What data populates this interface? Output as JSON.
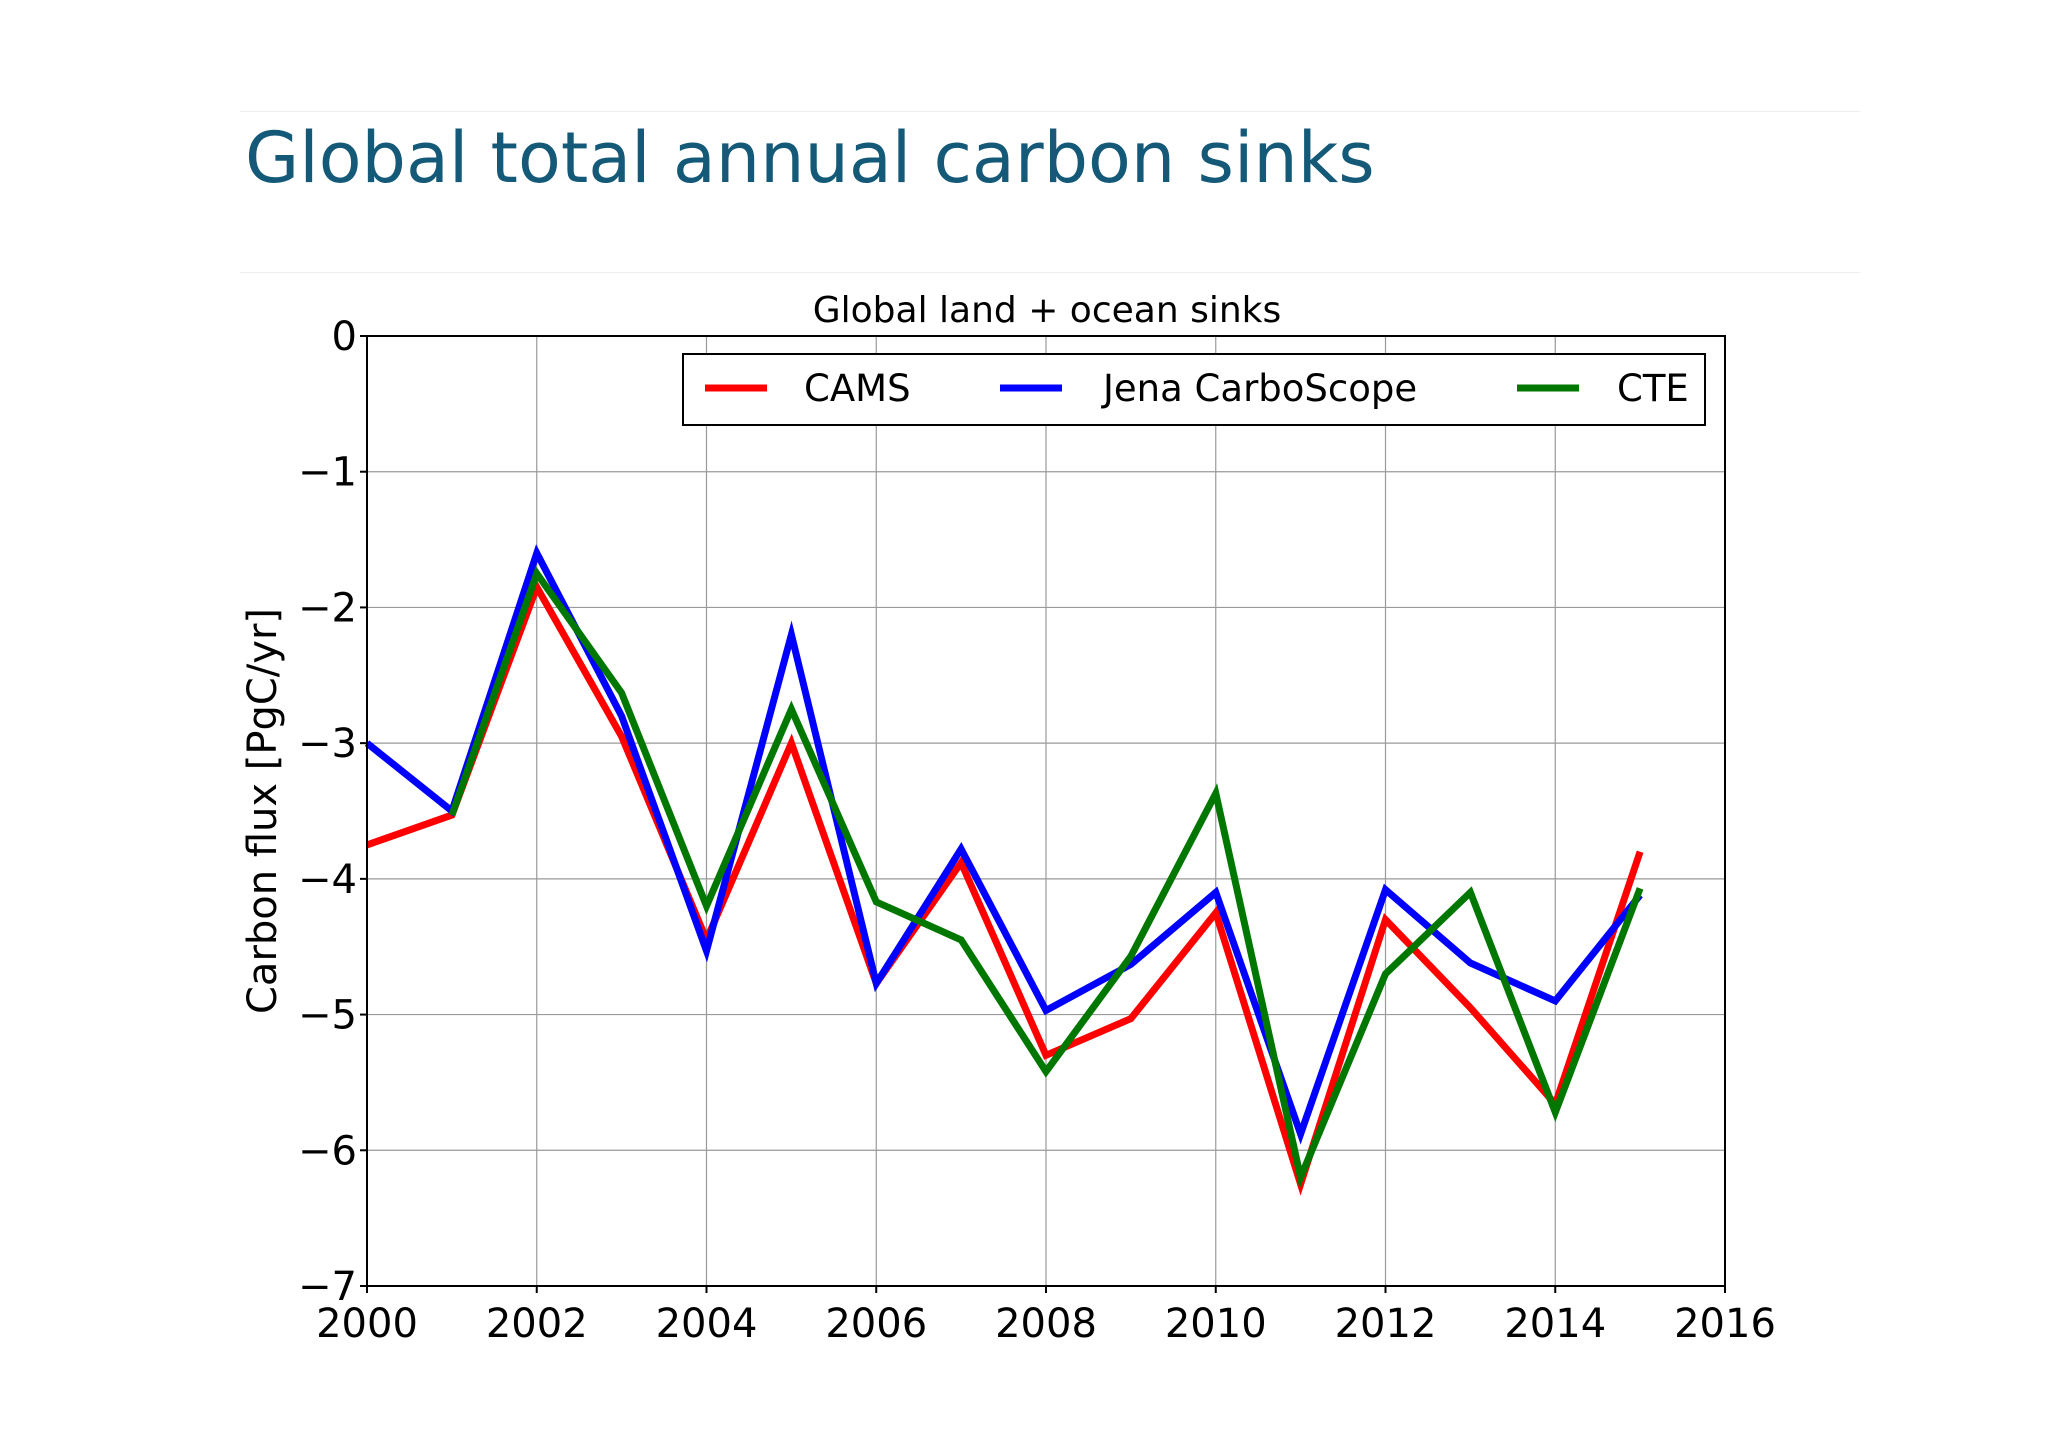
{
  "slide": {
    "title": "Global total annual carbon sinks"
  },
  "chart_data": {
    "type": "line",
    "title": "Global land + ocean sinks",
    "xlabel": "",
    "ylabel": "Carbon flux [PgC/yr]",
    "xlim": [
      2000,
      2016
    ],
    "ylim": [
      -7,
      0
    ],
    "xticks": [
      2000,
      2002,
      2004,
      2006,
      2008,
      2010,
      2012,
      2014,
      2016
    ],
    "yticks": [
      0,
      -1,
      -2,
      -3,
      -4,
      -5,
      -6,
      -7
    ],
    "ytick_labels": [
      "0",
      "−1",
      "−2",
      "−3",
      "−4",
      "−5",
      "−6",
      "−7"
    ],
    "grid": true,
    "legend_position": "top",
    "x": [
      2000,
      2001,
      2002,
      2003,
      2004,
      2005,
      2006,
      2007,
      2008,
      2009,
      2010,
      2011,
      2012,
      2013,
      2014,
      2015
    ],
    "series": [
      {
        "name": "CAMS",
        "color": "#ff0000",
        "values": [
          -3.75,
          -3.53,
          -1.85,
          -2.95,
          -4.45,
          -3.0,
          -4.77,
          -3.88,
          -5.3,
          -5.03,
          -4.25,
          -6.25,
          -4.3,
          -4.95,
          -5.66,
          -3.8
        ]
      },
      {
        "name": "Jena CarboScope",
        "color": "#0000ff",
        "values": [
          -3.0,
          -3.5,
          -1.6,
          -2.8,
          -4.53,
          -2.2,
          -4.77,
          -3.78,
          -4.97,
          -4.63,
          -4.1,
          -5.88,
          -4.08,
          -4.62,
          -4.9,
          -4.12
        ]
      },
      {
        "name": "CTE",
        "color": "#007700",
        "values": [
          null,
          -3.53,
          -1.75,
          -2.63,
          -4.2,
          -2.75,
          -4.17,
          -4.45,
          -5.42,
          -4.57,
          -3.37,
          -6.2,
          -4.7,
          -4.1,
          -5.72,
          -4.07
        ]
      }
    ]
  }
}
